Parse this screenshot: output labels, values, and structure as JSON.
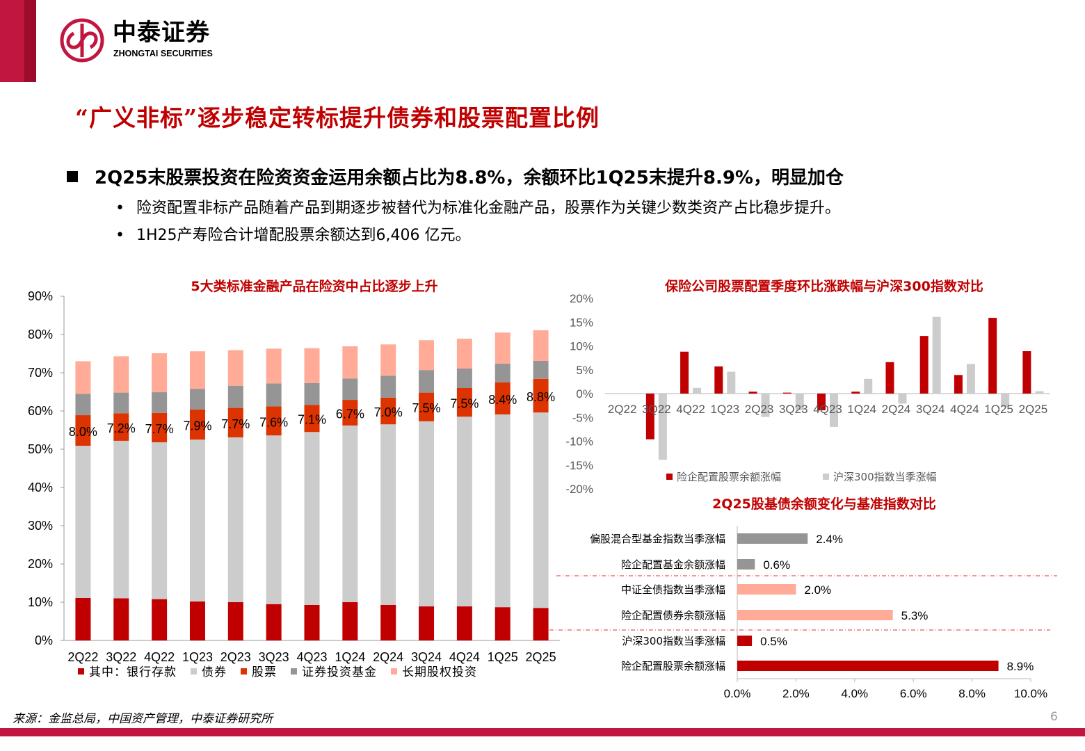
{
  "header": {
    "logo_cn": "中泰证券",
    "logo_en": "ZHONGTAI SECURITIES",
    "brand_color": "#c0163f"
  },
  "title": "“广义非标”逐步稳定转标提升债券和股票配置比例",
  "bullets": {
    "main": "2Q25末股票投资在险资资金运用余额占比为8.8%，余额环比1Q25末提升8.9%，明显加仓",
    "sub": [
      "险资配置非标产品随着产品到期逐步被替代为标准化金融产品，股票作为关键少数类资产占比稳步提升。",
      "1H25产寿险合计增配股票余额达到6,406 亿元。"
    ]
  },
  "chart_data": [
    {
      "type": "bar",
      "stacked": true,
      "title": "5大类标准金融产品在险资中占比逐步上升",
      "categories": [
        "2Q22",
        "3Q22",
        "4Q22",
        "1Q23",
        "2Q23",
        "3Q23",
        "4Q23",
        "1Q24",
        "2Q24",
        "3Q24",
        "4Q24",
        "1Q25",
        "2Q25"
      ],
      "ylim": [
        0,
        90
      ],
      "yticks": [
        "0%",
        "10%",
        "20%",
        "30%",
        "40%",
        "50%",
        "60%",
        "70%",
        "80%",
        "90%"
      ],
      "legend": "bottom",
      "series": [
        {
          "name": "其中：银行存款",
          "color": "#c00000",
          "values": [
            11.1,
            11.0,
            10.8,
            10.2,
            10.0,
            9.5,
            9.3,
            10.0,
            9.3,
            8.9,
            8.9,
            8.7,
            8.5
          ]
        },
        {
          "name": "债券",
          "color": "#cccccc",
          "values": [
            39.8,
            41.2,
            41.0,
            42.3,
            43.1,
            44.1,
            45.2,
            46.2,
            47.2,
            48.4,
            49.6,
            50.4,
            51.1
          ]
        },
        {
          "name": "股票",
          "color": "#dd3300",
          "values": [
            8.0,
            7.2,
            7.7,
            7.9,
            7.7,
            7.6,
            7.1,
            6.7,
            7.0,
            7.5,
            7.5,
            8.4,
            8.8
          ]
        },
        {
          "name": "证券投资基金",
          "color": "#959595",
          "values": [
            5.6,
            5.4,
            5.4,
            5.4,
            5.8,
            6.0,
            5.7,
            5.6,
            5.7,
            5.9,
            5.1,
            4.9,
            4.7
          ]
        },
        {
          "name": "长期股权投资",
          "color": "#ffab97",
          "values": [
            8.5,
            9.5,
            10.2,
            9.8,
            9.3,
            9.1,
            9.1,
            8.4,
            8.2,
            7.8,
            7.8,
            8.1,
            8.0
          ]
        }
      ],
      "data_labels": [
        "8.0%",
        "7.2%",
        "7.7%",
        "7.9%",
        "7.7%",
        "7.6%",
        "7.1%",
        "6.7%",
        "7.0%",
        "7.5%",
        "7.5%",
        "8.4%",
        "8.8%"
      ]
    },
    {
      "type": "bar",
      "title": "保险公司股票配置季度环比涨跌幅与沪深300指数对比",
      "categories": [
        "2Q22",
        "3Q22",
        "4Q22",
        "1Q23",
        "2Q23",
        "3Q23",
        "4Q23",
        "1Q24",
        "2Q24",
        "3Q24",
        "4Q24",
        "1Q25",
        "2Q25"
      ],
      "ylim": [
        -20,
        20
      ],
      "yticks": [
        "-20%",
        "-15%",
        "-10%",
        "-5%",
        "0%",
        "5%",
        "10%",
        "15%",
        "20%"
      ],
      "legend": "bottom",
      "series": [
        {
          "name": "险企配置股票余额涨幅",
          "color": "#c00000",
          "values": [
            0,
            -9.6,
            8.8,
            5.7,
            0.4,
            0.2,
            -3.5,
            0.4,
            6.6,
            12.1,
            3.9,
            15.9,
            8.9
          ]
        },
        {
          "name": "沪深300指数当季涨幅",
          "color": "#cccccc",
          "values": [
            null,
            -13.9,
            1.2,
            4.6,
            -4.9,
            -3.5,
            -7.0,
            3.1,
            -2.1,
            16.1,
            6.2,
            -2.8,
            0.5
          ]
        }
      ]
    },
    {
      "type": "bar",
      "orientation": "horizontal",
      "title": "2Q25股基债余额变化与基准指数对比",
      "categories": [
        "偏股混合型基金指数当季涨幅",
        "险企配置基金余额涨幅",
        "中证全债指数当季涨幅",
        "险企配置债券余额涨幅",
        "沪深300指数当季涨幅",
        "险企配置股票余额涨幅"
      ],
      "values": [
        2.4,
        0.6,
        2.0,
        5.3,
        0.5,
        8.9
      ],
      "data_labels": [
        "2.4%",
        "0.6%",
        "2.0%",
        "5.3%",
        "0.5%",
        "8.9%"
      ],
      "colors": [
        "#959595",
        "#959595",
        "#ffab97",
        "#ffab97",
        "#c00000",
        "#c00000"
      ],
      "xlim": [
        0,
        10
      ],
      "xticks": [
        "0.0%",
        "2.0%",
        "4.0%",
        "6.0%",
        "8.0%",
        "10.0%"
      ]
    }
  ],
  "footer": {
    "source": "来源：金监总局，中国资产管理，中泰证券研究所",
    "page": "6"
  }
}
